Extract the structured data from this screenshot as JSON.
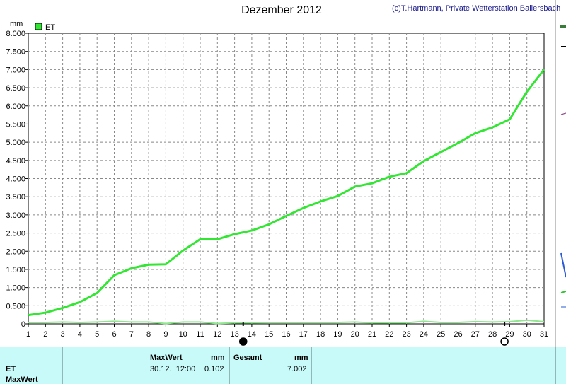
{
  "chart_data": {
    "type": "line",
    "title": "Dezember 2012",
    "credit": "(c)T.Hartmann, Private Wetterstation Ballersbach",
    "ylabel": "mm",
    "ylim": [
      0,
      8
    ],
    "yticks": [
      "0",
      "0.500",
      "1.000",
      "1.500",
      "2.000",
      "2.500",
      "3.000",
      "3.500",
      "4.000",
      "4.500",
      "5.000",
      "5.500",
      "6.000",
      "6.500",
      "7.000",
      "7.500",
      "8.000"
    ],
    "xlim": [
      1,
      31
    ],
    "x": [
      1,
      2,
      3,
      4,
      5,
      6,
      7,
      8,
      9,
      10,
      11,
      12,
      13,
      14,
      15,
      16,
      17,
      18,
      19,
      20,
      21,
      22,
      23,
      24,
      25,
      26,
      27,
      28,
      29,
      30,
      31
    ],
    "grid": true,
    "legend_position": "top-left",
    "series": [
      {
        "name": "ET",
        "color": "#33e633",
        "values": [
          0.24,
          0.31,
          0.44,
          0.6,
          0.85,
          1.34,
          1.53,
          1.63,
          1.64,
          2.02,
          2.33,
          2.33,
          2.47,
          2.57,
          2.74,
          2.97,
          3.19,
          3.37,
          3.52,
          3.78,
          3.87,
          4.05,
          4.15,
          4.48,
          4.73,
          4.98,
          5.25,
          5.41,
          5.63,
          6.39,
          7.002
        ]
      },
      {
        "color": "#8fe68f",
        "values": [
          0.04,
          0.04,
          0.05,
          0.04,
          0.05,
          0.07,
          0.05,
          0.05,
          0.01,
          0.05,
          0.05,
          0.01,
          0.03,
          0.03,
          0.04,
          0.04,
          0.04,
          0.04,
          0.04,
          0.05,
          0.03,
          0.03,
          0.03,
          0.07,
          0.04,
          0.04,
          0.06,
          0.05,
          0.06,
          0.1,
          0.06
        ]
      }
    ],
    "moon_phases": [
      {
        "type": "new-moon-icon",
        "day": 13.5
      },
      {
        "type": "full-moon-icon",
        "day": 28.7
      }
    ]
  },
  "table": {
    "row1": "ET",
    "row2": "MaxWert",
    "col_max_header": "MaxWert",
    "col_max_unit": "mm",
    "max_datetime": "30.12.  12:00",
    "max_value": "0.102",
    "col_total_header": "Gesamt",
    "col_total_unit": "mm",
    "total_value": "7.002"
  }
}
